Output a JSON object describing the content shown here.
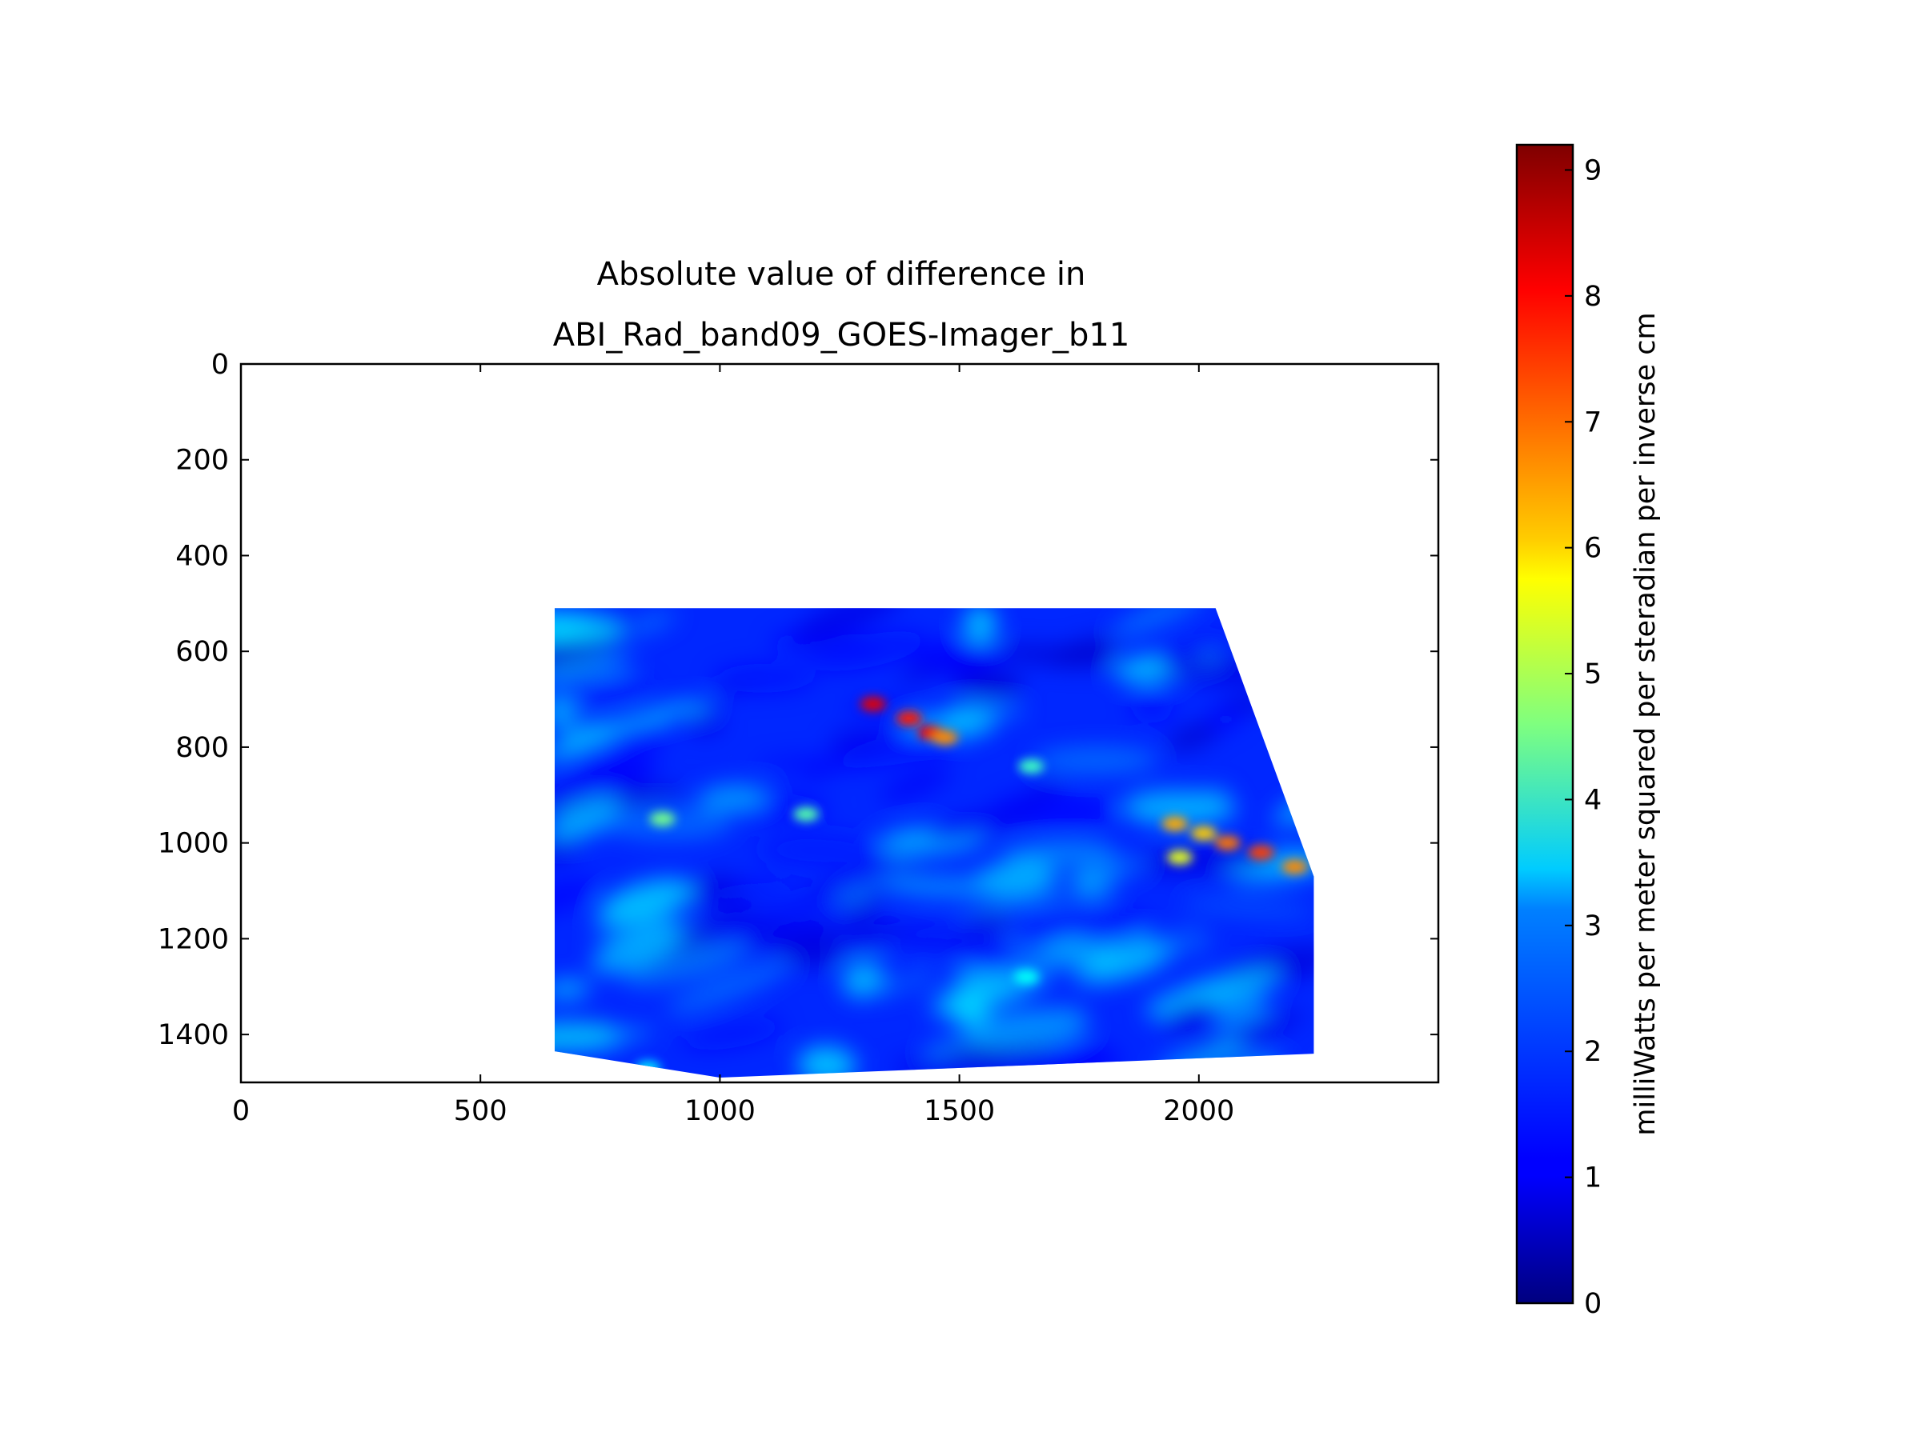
{
  "chart_data": {
    "type": "heatmap",
    "title_lines": [
      "Absolute value of difference in",
      "ABI_Rad_band09_GOES-Imager_b11"
    ],
    "xlabel": "",
    "ylabel": "",
    "xlim": [
      0,
      2500
    ],
    "ylim": [
      1500,
      0
    ],
    "y_inverted": true,
    "x_ticks": [
      0,
      500,
      1000,
      1500,
      2000
    ],
    "x_tick_labels": [
      "0",
      "500",
      "1000",
      "1500",
      "2000"
    ],
    "y_ticks": [
      0,
      200,
      400,
      600,
      800,
      1000,
      1200,
      1400
    ],
    "y_tick_labels": [
      "0",
      "200",
      "400",
      "600",
      "800",
      "1000",
      "1200",
      "1400"
    ],
    "grid": false,
    "colormap": "jet",
    "data_footprint": {
      "x_range": [
        655,
        2240
      ],
      "y_range": [
        510,
        1490
      ],
      "outline": [
        [
          655,
          510
        ],
        [
          2035,
          510
        ],
        [
          2240,
          1070
        ],
        [
          2240,
          1440
        ],
        [
          1000,
          1490
        ],
        [
          655,
          1435
        ]
      ]
    },
    "background_level": 1.5,
    "hotspots": [
      {
        "x": 1320,
        "y": 710,
        "value": 8.3
      },
      {
        "x": 1395,
        "y": 740,
        "value": 7.8
      },
      {
        "x": 1440,
        "y": 770,
        "value": 8.1
      },
      {
        "x": 1470,
        "y": 780,
        "value": 6.8
      },
      {
        "x": 1950,
        "y": 960,
        "value": 6.5
      },
      {
        "x": 2010,
        "y": 980,
        "value": 6.2
      },
      {
        "x": 2060,
        "y": 1000,
        "value": 7.0
      },
      {
        "x": 2130,
        "y": 1020,
        "value": 7.5
      },
      {
        "x": 2200,
        "y": 1050,
        "value": 6.8
      },
      {
        "x": 1960,
        "y": 1030,
        "value": 5.5
      },
      {
        "x": 880,
        "y": 950,
        "value": 4.5
      },
      {
        "x": 1180,
        "y": 940,
        "value": 4.2
      },
      {
        "x": 1650,
        "y": 840,
        "value": 4.0
      },
      {
        "x": 1640,
        "y": 1280,
        "value": 3.5
      },
      {
        "x": 850,
        "y": 1470,
        "value": 3.2
      }
    ],
    "colorbar": {
      "label": "milliWatts per meter squared per steradian per inverse cm",
      "range": [
        0,
        9.2
      ],
      "ticks": [
        0,
        1,
        2,
        3,
        4,
        5,
        6,
        7,
        8,
        9
      ],
      "tick_labels": [
        "0",
        "1",
        "2",
        "3",
        "4",
        "5",
        "6",
        "7",
        "8",
        "9"
      ]
    }
  }
}
